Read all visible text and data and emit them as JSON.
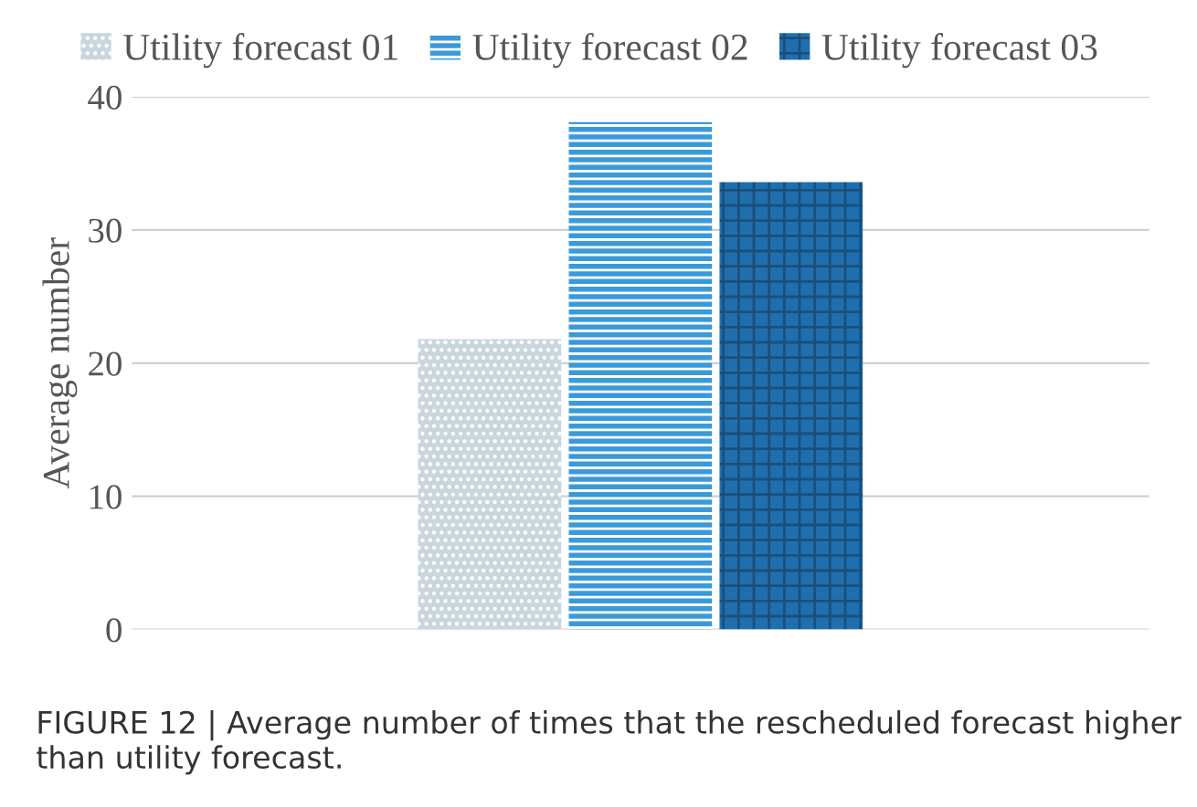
{
  "chart_data": {
    "type": "bar",
    "ylabel": "Average number",
    "categories": [
      null
    ],
    "series": [
      {
        "name": "Utility forecast 01",
        "color": "#c9d6de",
        "values": [
          21.8
        ]
      },
      {
        "name": "Utility forecast 02",
        "color": "#3a9ad9",
        "values": [
          38.1
        ]
      },
      {
        "name": "Utility forecast 03",
        "color": "#1f6fae",
        "values": [
          33.6
        ]
      }
    ],
    "ylim": [
      0,
      40
    ],
    "yticks": [
      0,
      10,
      20,
      30,
      40
    ],
    "grid": "y",
    "legend": "top",
    "annotations": [
      "FIGURE 12 | Average number of times that the rescheduled forecast higher than utility forecast."
    ]
  }
}
